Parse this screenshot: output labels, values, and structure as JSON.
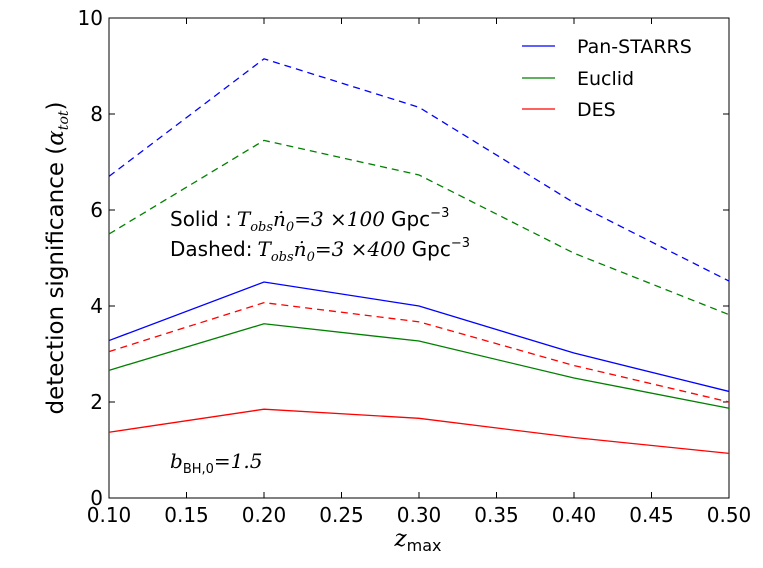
{
  "chart_data": {
    "type": "line",
    "x": [
      0.1,
      0.2,
      0.3,
      0.4,
      0.5
    ],
    "xlim": [
      0.1,
      0.5
    ],
    "ylim": [
      0,
      10
    ],
    "xticks": [
      "0.10",
      "0.15",
      "0.20",
      "0.25",
      "0.30",
      "0.35",
      "0.40",
      "0.45",
      "0.50"
    ],
    "yticks": [
      "0",
      "2",
      "4",
      "6",
      "8",
      "10"
    ],
    "xlabel": {
      "base": "z",
      "sub": "max"
    },
    "ylabel": {
      "prefix": "detection significance (",
      "base": "α",
      "sub": "tot",
      "suffix": ")"
    },
    "grid": false,
    "legend_position": "top-right",
    "legend": [
      {
        "name": "Pan-STARRS",
        "color": "#0000ff"
      },
      {
        "name": "Euclid",
        "color": "#008000"
      },
      {
        "name": "DES",
        "color": "#ff0000"
      }
    ],
    "series": [
      {
        "name": "Pan-STARRS",
        "style": "solid",
        "color": "#0000ff",
        "values": [
          3.28,
          4.5,
          4.0,
          3.02,
          2.22
        ]
      },
      {
        "name": "Euclid",
        "style": "solid",
        "color": "#008000",
        "values": [
          2.66,
          3.63,
          3.27,
          2.5,
          1.87
        ]
      },
      {
        "name": "DES",
        "style": "solid",
        "color": "#ff0000",
        "values": [
          1.37,
          1.85,
          1.66,
          1.26,
          0.93
        ]
      },
      {
        "name": "Pan-STARRS",
        "style": "dashed",
        "color": "#0000ff",
        "values": [
          6.7,
          9.15,
          8.14,
          6.15,
          4.52
        ]
      },
      {
        "name": "Euclid",
        "style": "dashed",
        "color": "#008000",
        "values": [
          5.5,
          7.45,
          6.73,
          5.1,
          3.82
        ]
      },
      {
        "name": "DES",
        "style": "dashed",
        "color": "#ff0000",
        "values": [
          3.05,
          4.07,
          3.67,
          2.76,
          2.0
        ]
      }
    ],
    "annotations": {
      "solid": {
        "label": "Solid :",
        "expr": "T",
        "sub": "obs",
        "expr2": "ṅ",
        "sub2": "0",
        "value": "=3 ×100",
        "unit": "Gpc",
        "exp": "−3"
      },
      "dashed": {
        "label": "Dashed:",
        "expr": "T",
        "sub": "obs",
        "expr2": "ṅ",
        "sub2": "0",
        "value": "=3 ×400",
        "unit": "Gpc",
        "exp": "−3"
      },
      "bias": {
        "expr": "b",
        "sub": "BH,0",
        "value": "=1.5"
      }
    }
  }
}
